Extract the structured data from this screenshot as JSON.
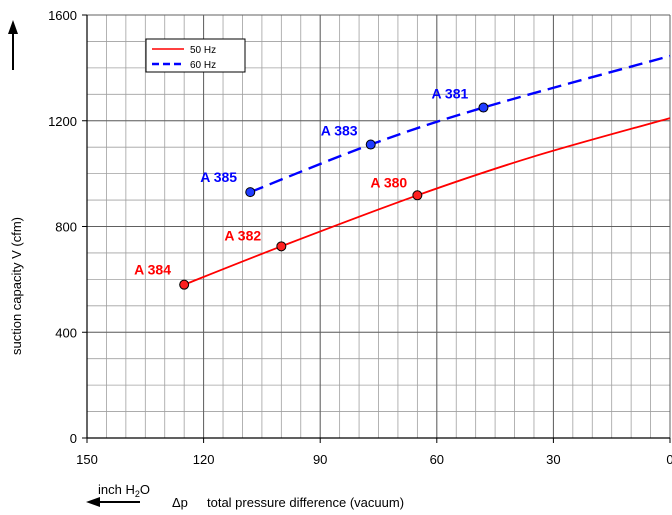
{
  "chart_data": {
    "type": "line",
    "title": "",
    "xlabel_unit": "inch H",
    "xlabel_unit_sub": "2",
    "xlabel_unit_tail": "O",
    "xlabel_symbol": "Δp",
    "xlabel": "total pressure difference (vacuum)",
    "ylabel": "suction capacity V (cfm)",
    "xlim": [
      150,
      0
    ],
    "ylim": [
      0,
      1600
    ],
    "x_ticks": [
      "150",
      "120",
      "90",
      "60",
      "30",
      "0"
    ],
    "y_ticks": [
      "0",
      "400",
      "800",
      "1200",
      "1600"
    ],
    "x_tick_values": [
      150,
      120,
      90,
      60,
      30,
      0
    ],
    "y_tick_values": [
      0,
      400,
      800,
      1200,
      1600
    ],
    "grid": true,
    "legend_position": "top-left",
    "series": [
      {
        "name": "50 Hz",
        "color": "#ff0000",
        "style": "solid",
        "x": [
          125,
          100,
          65,
          35,
          0
        ],
        "values": [
          580,
          725,
          918,
          1065,
          1210
        ],
        "points": [
          {
            "label": "A 384",
            "x": 125,
            "y": 580
          },
          {
            "label": "A 382",
            "x": 100,
            "y": 725
          },
          {
            "label": "A 380",
            "x": 65,
            "y": 918
          }
        ]
      },
      {
        "name": "60 Hz",
        "color": "#0000ff",
        "style": "dashed",
        "x": [
          108,
          77,
          48,
          0
        ],
        "values": [
          930,
          1110,
          1250,
          1445
        ],
        "points": [
          {
            "label": "A 385",
            "x": 108,
            "y": 930
          },
          {
            "label": "A 383",
            "x": 77,
            "y": 1110
          },
          {
            "label": "A 381",
            "x": 48,
            "y": 1250
          }
        ]
      }
    ]
  }
}
